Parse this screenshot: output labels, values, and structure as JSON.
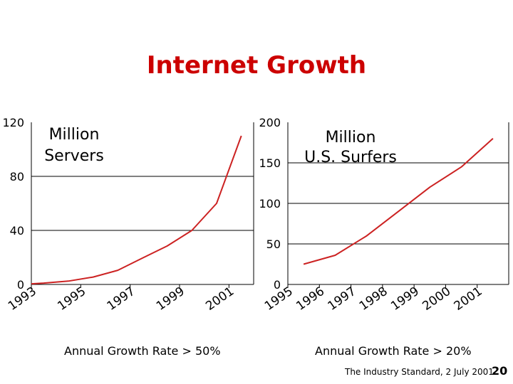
{
  "slide": {
    "title": "Internet Growth",
    "source": "The Industry Standard, 2 July 2001",
    "page_number": "20",
    "accent_color": "#cc0000"
  },
  "chart_data": [
    {
      "type": "line",
      "title": "Million Servers",
      "title_lines": [
        "Million",
        "Servers"
      ],
      "caption": "Annual Growth Rate > 50%",
      "ylim": [
        0,
        120
      ],
      "yticks": [
        0,
        40,
        80,
        120
      ],
      "ytick_labels": [
        "0",
        "40",
        "80",
        "120"
      ],
      "x_tick_labels": [
        "1993",
        "1995",
        "1997",
        "1999",
        "2001"
      ],
      "x_tick_values": [
        1993,
        1995,
        1997,
        1999,
        2001
      ],
      "xlim": [
        1993,
        2002
      ],
      "series": [
        {
          "name": "Million Servers",
          "color": "#cc2222",
          "x": [
            1993.0,
            1993.5,
            1994.5,
            1995.5,
            1996.5,
            1997.5,
            1998.5,
            1999.5,
            2000.5,
            2001.5
          ],
          "values": [
            0.5,
            1.0,
            2.5,
            5.5,
            10.5,
            19.5,
            28.5,
            40.0,
            60.0,
            110.0
          ]
        }
      ]
    },
    {
      "type": "line",
      "title": "Million U.S. Surfers",
      "title_lines": [
        "Million",
        "U.S. Surfers"
      ],
      "caption": "Annual Growth Rate > 20%",
      "ylim": [
        0,
        200
      ],
      "yticks": [
        0,
        50,
        100,
        150,
        200
      ],
      "ytick_labels": [
        "0",
        "50",
        "100",
        "150",
        "200"
      ],
      "x_tick_labels": [
        "1995",
        "1996",
        "1997",
        "1998",
        "1999",
        "2000",
        "2001"
      ],
      "x_tick_values": [
        1995,
        1996,
        1997,
        1998,
        1999,
        2000,
        2001
      ],
      "xlim": [
        1995,
        2002
      ],
      "series": [
        {
          "name": "Million U.S. Surfers",
          "color": "#cc2222",
          "x": [
            1995.5,
            1996.5,
            1997.5,
            1998.5,
            1999.5,
            2000.5,
            2001.5
          ],
          "values": [
            25,
            36,
            60,
            90,
            120,
            145,
            180
          ]
        }
      ]
    }
  ]
}
